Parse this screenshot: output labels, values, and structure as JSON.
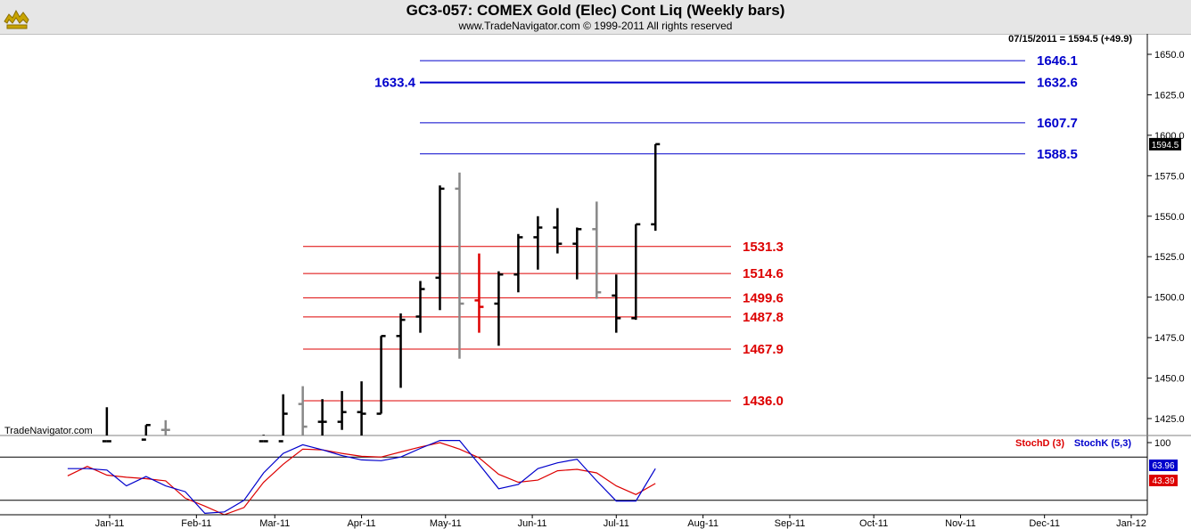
{
  "header": {
    "title": "GC3-057:  COMEX Gold (Elec) Cont Liq  (Weekly bars)",
    "subtitle": "www.TradeNavigator.com © 1999-2011 All rights reserved",
    "logo_icon": "bull-logo-icon"
  },
  "chart_data": [
    {
      "type": "bar",
      "title": "GC3-057:  COMEX Gold (Elec) Cont Liq  (Weekly bars)",
      "last_value_label": "07/15/2011 = 1594.5 (+49.9)",
      "last_price_tag": "1594.5",
      "watermark": "TradeNavigator.com",
      "ylim": [
        1410,
        1665
      ],
      "y_ticks": [
        1425.0,
        1450.0,
        1475.0,
        1500.0,
        1525.0,
        1550.0,
        1575.0,
        1600.0,
        1625.0,
        1650.0
      ],
      "x_tick_labels": [
        "Jan-11",
        "Feb-11",
        "Mar-11",
        "Apr-11",
        "May-11",
        "Jun-11",
        "Jul-11",
        "Aug-11",
        "Sep-11",
        "Oct-11",
        "Nov-11",
        "Dec-11",
        "Jan-12"
      ],
      "grid": false,
      "ohlc_bars": [
        {
          "date": "2010-12-31",
          "open": 1411,
          "high": 1432,
          "low": 1411,
          "close": 1411,
          "color": "#000000"
        },
        {
          "date": "2011-01-14",
          "open": 1412,
          "high": 1421,
          "low": 1411,
          "close": 1421,
          "color": "#000000"
        },
        {
          "date": "2011-01-21",
          "open": 1418,
          "high": 1424,
          "low": 1411,
          "close": 1418,
          "color": "#888888"
        },
        {
          "date": "2011-02-25",
          "open": 1411,
          "high": 1415,
          "low": 1411,
          "close": 1411,
          "color": "#000000"
        },
        {
          "date": "2011-03-04",
          "open": 1411,
          "high": 1440,
          "low": 1411,
          "close": 1428,
          "color": "#000000"
        },
        {
          "date": "2011-03-11",
          "open": 1434,
          "high": 1445,
          "low": 1411,
          "close": 1420,
          "color": "#888888"
        },
        {
          "date": "2011-03-18",
          "open": 1423,
          "high": 1437,
          "low": 1412,
          "close": 1423,
          "color": "#000000"
        },
        {
          "date": "2011-03-25",
          "open": 1423,
          "high": 1442,
          "low": 1418,
          "close": 1429,
          "color": "#000000"
        },
        {
          "date": "2011-04-01",
          "open": 1429,
          "high": 1448,
          "low": 1411,
          "close": 1428,
          "color": "#000000"
        },
        {
          "date": "2011-04-08",
          "open": 1428,
          "high": 1476,
          "low": 1428,
          "close": 1476,
          "color": "#000000"
        },
        {
          "date": "2011-04-15",
          "open": 1476,
          "high": 1490,
          "low": 1444,
          "close": 1486,
          "color": "#000000"
        },
        {
          "date": "2011-04-22",
          "open": 1488,
          "high": 1510,
          "low": 1478,
          "close": 1505,
          "color": "#000000"
        },
        {
          "date": "2011-04-29",
          "open": 1512,
          "high": 1569,
          "low": 1492,
          "close": 1567,
          "color": "#000000"
        },
        {
          "date": "2011-05-06",
          "open": 1567,
          "high": 1577,
          "low": 1462,
          "close": 1496,
          "color": "#888888"
        },
        {
          "date": "2011-05-13",
          "open": 1498,
          "high": 1527,
          "low": 1478,
          "close": 1494,
          "color": "#dd0000"
        },
        {
          "date": "2011-05-20",
          "open": 1496,
          "high": 1516,
          "low": 1470,
          "close": 1514,
          "color": "#000000"
        },
        {
          "date": "2011-05-27",
          "open": 1514,
          "high": 1539,
          "low": 1503,
          "close": 1537,
          "color": "#000000"
        },
        {
          "date": "2011-06-03",
          "open": 1537,
          "high": 1550,
          "low": 1517,
          "close": 1543,
          "color": "#000000"
        },
        {
          "date": "2011-06-10",
          "open": 1543,
          "high": 1555,
          "low": 1527,
          "close": 1533,
          "color": "#000000"
        },
        {
          "date": "2011-06-17",
          "open": 1533,
          "high": 1543,
          "low": 1511,
          "close": 1542,
          "color": "#000000"
        },
        {
          "date": "2011-06-24",
          "open": 1542,
          "high": 1559,
          "low": 1499,
          "close": 1503,
          "color": "#888888"
        },
        {
          "date": "2011-07-01",
          "open": 1501,
          "high": 1514,
          "low": 1478,
          "close": 1487,
          "color": "#000000"
        },
        {
          "date": "2011-07-08",
          "open": 1487,
          "high": 1545,
          "low": 1486,
          "close": 1545,
          "color": "#000000"
        },
        {
          "date": "2011-07-15",
          "open": 1545,
          "high": 1594.5,
          "low": 1541,
          "close": 1594.5,
          "color": "#000000"
        }
      ],
      "levels": [
        {
          "value": 1646.1,
          "label": "1646.1",
          "color": "#0000cc",
          "group": "upper",
          "bold": false
        },
        {
          "value": 1632.6,
          "label": "1632.6",
          "left_label": "1633.4",
          "color": "#0000cc",
          "group": "upper",
          "bold": true
        },
        {
          "value": 1607.7,
          "label": "1607.7",
          "color": "#0000cc",
          "group": "upper",
          "bold": false
        },
        {
          "value": 1588.5,
          "label": "1588.5",
          "color": "#0000cc",
          "group": "upper",
          "bold": false
        },
        {
          "value": 1531.3,
          "label": "1531.3",
          "color": "#dd0000",
          "group": "lower",
          "bold": false
        },
        {
          "value": 1514.6,
          "label": "1514.6",
          "color": "#dd0000",
          "group": "lower",
          "bold": false
        },
        {
          "value": 1499.6,
          "label": "1499.6",
          "color": "#dd0000",
          "group": "lower",
          "bold": false
        },
        {
          "value": 1487.8,
          "label": "1487.8",
          "color": "#dd0000",
          "group": "lower",
          "bold": false
        },
        {
          "value": 1467.9,
          "label": "1467.9",
          "color": "#dd0000",
          "group": "lower",
          "bold": false
        },
        {
          "value": 1436.0,
          "label": "1436.0",
          "color": "#dd0000",
          "group": "lower",
          "bold": false
        }
      ]
    },
    {
      "type": "line",
      "ylim": [
        0,
        100
      ],
      "y_ticks_labeled": [
        "100"
      ],
      "reference_lines": [
        80,
        20
      ],
      "legend": [
        {
          "name": "StochD (3)",
          "color": "#dd0000"
        },
        {
          "name": "StochK (5,3)",
          "color": "#0000cc"
        }
      ],
      "series": [
        {
          "name": "StochK (5,3)",
          "color": "#0000cc",
          "last_label": "63.96",
          "points": [
            {
              "date": "2010-12-17",
              "value": 64
            },
            {
              "date": "2010-12-24",
              "value": 64
            },
            {
              "date": "2010-12-31",
              "value": 62
            },
            {
              "date": "2011-01-07",
              "value": 40
            },
            {
              "date": "2011-01-14",
              "value": 53
            },
            {
              "date": "2011-01-21",
              "value": 40
            },
            {
              "date": "2011-01-28",
              "value": 32
            },
            {
              "date": "2011-02-04",
              "value": 2
            },
            {
              "date": "2011-02-11",
              "value": 4
            },
            {
              "date": "2011-02-18",
              "value": 20
            },
            {
              "date": "2011-02-25",
              "value": 58
            },
            {
              "date": "2011-03-04",
              "value": 85
            },
            {
              "date": "2011-03-11",
              "value": 97
            },
            {
              "date": "2011-03-18",
              "value": 90
            },
            {
              "date": "2011-03-25",
              "value": 82
            },
            {
              "date": "2011-04-01",
              "value": 76
            },
            {
              "date": "2011-04-08",
              "value": 75
            },
            {
              "date": "2011-04-15",
              "value": 80
            },
            {
              "date": "2011-04-22",
              "value": 92
            },
            {
              "date": "2011-04-29",
              "value": 103
            },
            {
              "date": "2011-05-06",
              "value": 103
            },
            {
              "date": "2011-05-13",
              "value": 70
            },
            {
              "date": "2011-05-20",
              "value": 36
            },
            {
              "date": "2011-05-27",
              "value": 42
            },
            {
              "date": "2011-06-03",
              "value": 64
            },
            {
              "date": "2011-06-10",
              "value": 72
            },
            {
              "date": "2011-06-17",
              "value": 77
            },
            {
              "date": "2011-06-24",
              "value": 47
            },
            {
              "date": "2011-07-01",
              "value": 19
            },
            {
              "date": "2011-07-08",
              "value": 19
            },
            {
              "date": "2011-07-15",
              "value": 63.96
            }
          ]
        },
        {
          "name": "StochD (3)",
          "color": "#dd0000",
          "last_label": "43.39",
          "points": [
            {
              "date": "2010-12-17",
              "value": 54
            },
            {
              "date": "2010-12-24",
              "value": 67
            },
            {
              "date": "2010-12-31",
              "value": 55
            },
            {
              "date": "2011-01-07",
              "value": 52
            },
            {
              "date": "2011-01-14",
              "value": 50
            },
            {
              "date": "2011-01-21",
              "value": 47
            },
            {
              "date": "2011-01-28",
              "value": 23
            },
            {
              "date": "2011-02-04",
              "value": 12
            },
            {
              "date": "2011-02-11",
              "value": 0
            },
            {
              "date": "2011-02-18",
              "value": 10
            },
            {
              "date": "2011-02-25",
              "value": 45
            },
            {
              "date": "2011-03-04",
              "value": 70
            },
            {
              "date": "2011-03-11",
              "value": 91
            },
            {
              "date": "2011-03-18",
              "value": 90
            },
            {
              "date": "2011-03-25",
              "value": 85
            },
            {
              "date": "2011-04-01",
              "value": 81
            },
            {
              "date": "2011-04-08",
              "value": 80
            },
            {
              "date": "2011-04-15",
              "value": 87
            },
            {
              "date": "2011-04-22",
              "value": 94
            },
            {
              "date": "2011-04-29",
              "value": 100
            },
            {
              "date": "2011-05-06",
              "value": 91
            },
            {
              "date": "2011-05-13",
              "value": 79
            },
            {
              "date": "2011-05-20",
              "value": 56
            },
            {
              "date": "2011-05-27",
              "value": 45
            },
            {
              "date": "2011-06-03",
              "value": 48
            },
            {
              "date": "2011-06-10",
              "value": 61
            },
            {
              "date": "2011-06-17",
              "value": 63
            },
            {
              "date": "2011-06-24",
              "value": 58
            },
            {
              "date": "2011-07-01",
              "value": 40
            },
            {
              "date": "2011-07-08",
              "value": 28
            },
            {
              "date": "2011-07-15",
              "value": 43.39
            }
          ]
        }
      ]
    }
  ],
  "colors": {
    "header_bg": "#e6e6e6",
    "axis": "#000000",
    "support": "#dd0000",
    "resistance": "#0000cc",
    "tag_bg": "#000000"
  }
}
